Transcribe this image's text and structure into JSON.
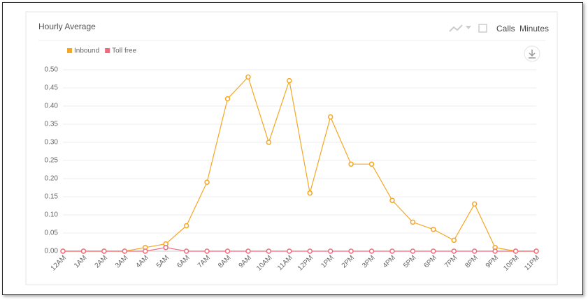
{
  "header": {
    "title": "Hourly Average",
    "tabs": [
      "Calls",
      "Minutes"
    ]
  },
  "chart_data": {
    "type": "line",
    "categories": [
      "12AM",
      "1AM",
      "2AM",
      "3AM",
      "4AM",
      "5AM",
      "6AM",
      "7AM",
      "8AM",
      "9AM",
      "10AM",
      "11AM",
      "12PM",
      "1PM",
      "2PM",
      "3PM",
      "4PM",
      "5PM",
      "6PM",
      "7PM",
      "8PM",
      "9PM",
      "10PM",
      "11PM"
    ],
    "series": [
      {
        "name": "Inbound",
        "color": "#f5a623",
        "values": [
          0,
          0,
          0,
          0,
          0.01,
          0.02,
          0.07,
          0.19,
          0.42,
          0.48,
          0.3,
          0.47,
          0.16,
          0.37,
          0.24,
          0.24,
          0.14,
          0.08,
          0.06,
          0.03,
          0.13,
          0.01,
          0,
          0
        ]
      },
      {
        "name": "Toll free",
        "color": "#f06a7e",
        "values": [
          0,
          0,
          0,
          0,
          0,
          0.01,
          0,
          0,
          0,
          0,
          0,
          0,
          0,
          0,
          0,
          0,
          0,
          0,
          0,
          0,
          0,
          0,
          0,
          0
        ]
      }
    ],
    "ylim": [
      0,
      0.5
    ],
    "yticks": [
      {
        "value": 0,
        "label": "0.00"
      },
      0.05,
      {
        "value": 0.1,
        "label": "0.10"
      },
      0.15,
      {
        "value": 0.2,
        "label": "0.20"
      },
      0.25,
      {
        "value": 0.3,
        "label": "0.30"
      },
      0.35,
      {
        "value": 0.4,
        "label": "0.40"
      },
      0.45,
      {
        "value": 0.5,
        "label": "0.50"
      }
    ],
    "grid": true
  }
}
